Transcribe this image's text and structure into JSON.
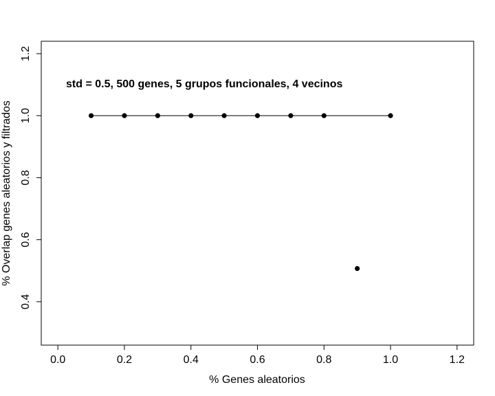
{
  "chart_data": {
    "type": "scatter",
    "title": "",
    "xlabel": "% Genes aleatorios",
    "ylabel": "% Overlap genes aleatorios y filtrados",
    "xlim": [
      -0.05,
      1.25
    ],
    "ylim": [
      0.26,
      1.24
    ],
    "x_ticks": [
      0.0,
      0.2,
      0.4,
      0.6,
      0.8,
      1.0,
      1.2
    ],
    "x_tick_labels": [
      "0.0",
      "0.2",
      "0.4",
      "0.6",
      "0.8",
      "1.0",
      "1.2"
    ],
    "y_ticks": [
      0.4,
      0.6,
      0.8,
      1.0,
      1.2
    ],
    "y_tick_labels": [
      "0.4",
      "0.6",
      "0.8",
      "1.0",
      "1.2"
    ],
    "grid": false,
    "legend": "none",
    "annotation": "std = 0.5, 500 genes, 5 grupos funcionales, 4 vecinos",
    "series": [
      {
        "x": [
          0.1,
          0.2,
          0.3,
          0.4,
          0.5,
          0.6,
          0.7,
          0.8,
          0.9,
          1.0
        ],
        "y": [
          1.0,
          1.0,
          1.0,
          1.0,
          1.0,
          1.0,
          1.0,
          1.0,
          0.507,
          1.0
        ],
        "color": "#000000"
      }
    ]
  }
}
